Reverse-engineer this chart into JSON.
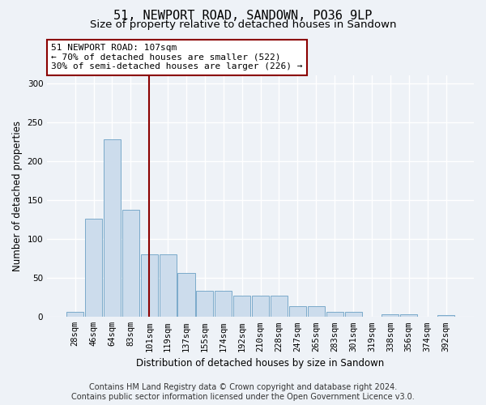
{
  "title": "51, NEWPORT ROAD, SANDOWN, PO36 9LP",
  "subtitle": "Size of property relative to detached houses in Sandown",
  "xlabel": "Distribution of detached houses by size in Sandown",
  "ylabel": "Number of detached properties",
  "bar_values": [
    7,
    126,
    228,
    138,
    80,
    80,
    57,
    34,
    34,
    27,
    27,
    27,
    14,
    14,
    7,
    7,
    0,
    3,
    3,
    0,
    2
  ],
  "bar_labels": [
    "28sqm",
    "46sqm",
    "64sqm",
    "83sqm",
    "101sqm",
    "119sqm",
    "137sqm",
    "155sqm",
    "174sqm",
    "192sqm",
    "210sqm",
    "228sqm",
    "247sqm",
    "265sqm",
    "283sqm",
    "301sqm",
    "319sqm",
    "338sqm",
    "356sqm",
    "374sqm",
    "392sqm"
  ],
  "bar_color": "#ccdcec",
  "bar_edge_color": "#7aaaca",
  "bar_edge_width": 0.7,
  "vline_index": 4,
  "vline_color": "#8b0000",
  "annotation_line1": "51 NEWPORT ROAD: 107sqm",
  "annotation_line2": "← 70% of detached houses are smaller (522)",
  "annotation_line3": "30% of semi-detached houses are larger (226) →",
  "annotation_box_color": "white",
  "annotation_box_edge_color": "#8b0000",
  "ylim": [
    0,
    310
  ],
  "yticks": [
    0,
    50,
    100,
    150,
    200,
    250,
    300
  ],
  "footer_line1": "Contains HM Land Registry data © Crown copyright and database right 2024.",
  "footer_line2": "Contains public sector information licensed under the Open Government Licence v3.0.",
  "bg_color": "#eef2f7",
  "plot_bg_color": "#eef2f7",
  "grid_color": "#ffffff",
  "title_fontsize": 11,
  "subtitle_fontsize": 9.5,
  "label_fontsize": 8.5,
  "tick_fontsize": 7.5,
  "annotation_fontsize": 8,
  "footer_fontsize": 7
}
